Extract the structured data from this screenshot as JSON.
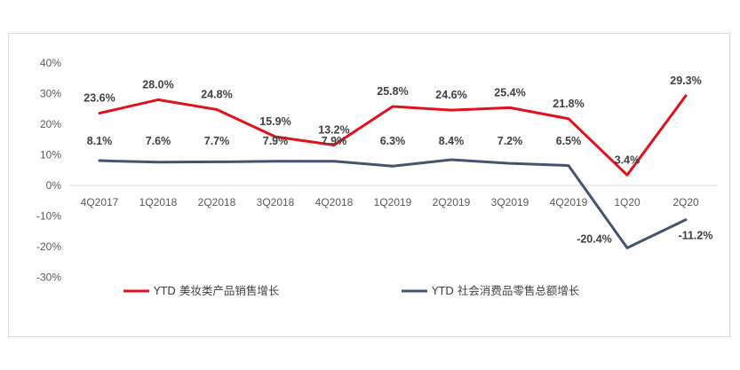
{
  "chart_data": {
    "type": "line",
    "categories": [
      "4Q2017",
      "1Q2018",
      "2Q2018",
      "3Q2018",
      "4Q2018",
      "1Q2019",
      "2Q2019",
      "3Q2019",
      "4Q2019",
      "1Q20",
      "2Q20"
    ],
    "series": [
      {
        "name": "YTD 美妆类产品销售增长",
        "color": "#e0111b",
        "values": [
          23.6,
          28.0,
          24.8,
          15.9,
          13.2,
          25.8,
          24.6,
          25.4,
          21.8,
          3.4,
          29.3
        ],
        "labels": [
          "23.6%",
          "28.0%",
          "24.8%",
          "15.9%",
          "13.2%",
          "25.8%",
          "24.6%",
          "25.4%",
          "21.8%",
          "3.4%",
          "29.3%"
        ]
      },
      {
        "name": "YTD 社会消费品零售总额增长",
        "color": "#44546a",
        "values": [
          8.1,
          7.6,
          7.7,
          7.9,
          7.9,
          6.3,
          8.4,
          7.2,
          6.5,
          -20.4,
          -11.2
        ],
        "labels": [
          "8.1%",
          "7.6%",
          "7.7%",
          "7.9%",
          "7.9%",
          "6.3%",
          "8.4%",
          "7.2%",
          "6.5%",
          "-20.4%",
          "-11.2%"
        ]
      }
    ],
    "ylim": [
      -30,
      40
    ],
    "yticks": [
      40,
      30,
      20,
      10,
      0,
      -10,
      -20,
      -30
    ],
    "ytick_labels": [
      "40%",
      "30%",
      "20%",
      "10%",
      "0%",
      "-10%",
      "-20%",
      "-30%"
    ],
    "grid": false,
    "legend_position": "bottom",
    "title": "",
    "xlabel": "",
    "ylabel": ""
  }
}
